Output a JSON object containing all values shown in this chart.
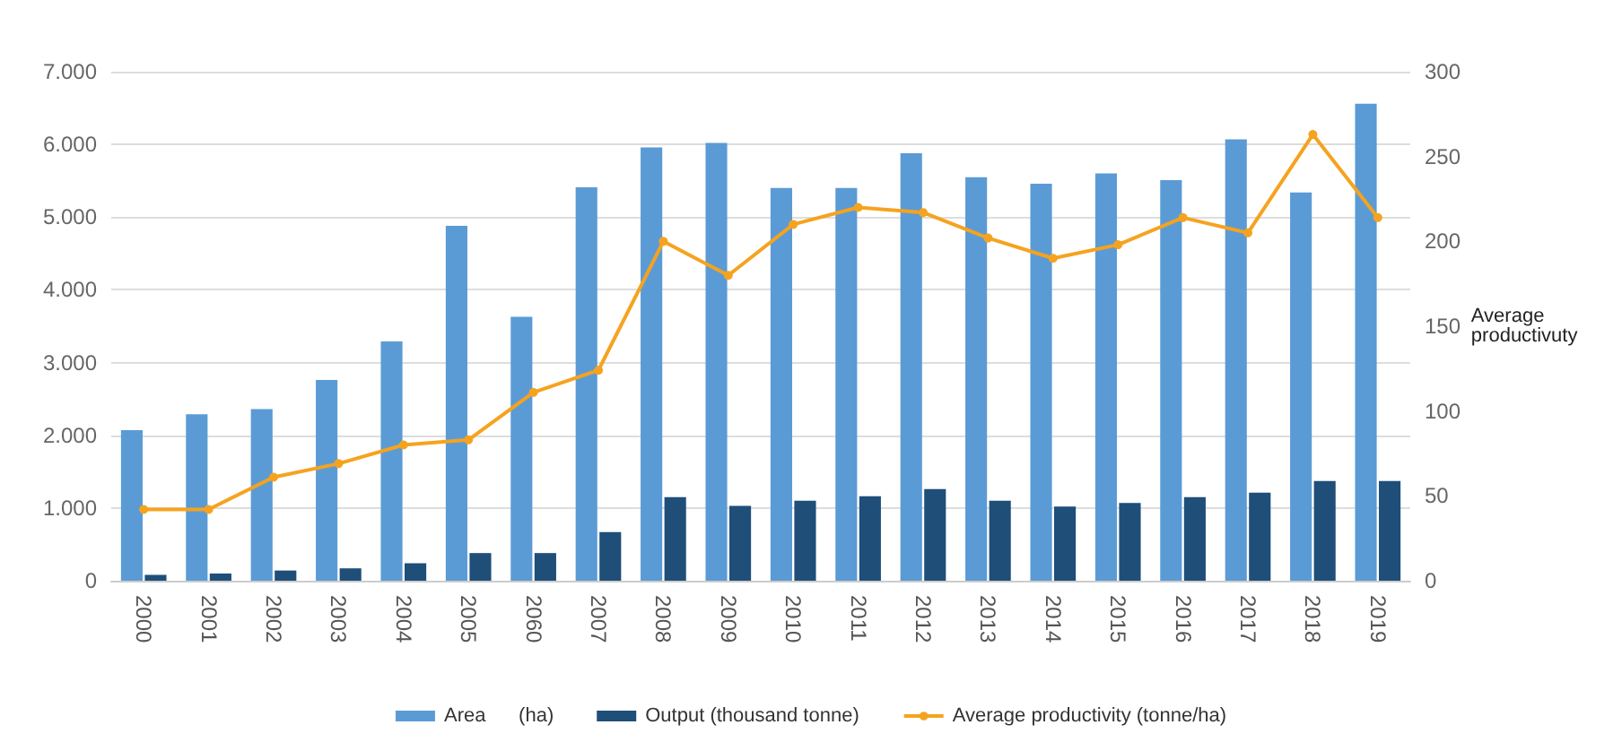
{
  "chart_data": {
    "type": "bar",
    "y2label": "Average\nproductivuty",
    "categories": [
      "2000",
      "2001",
      "2002",
      "2003",
      "2004",
      "2005",
      "2060",
      "2007",
      "2008",
      "2009",
      "2010",
      "2011",
      "2012",
      "2013",
      "2014",
      "2015",
      "2016",
      "2017",
      "2018",
      "2019"
    ],
    "series": [
      {
        "name": "Area      (ha)",
        "color": "#5b9bd5",
        "values": [
          2070,
          2290,
          2360,
          2760,
          3290,
          4880,
          3630,
          5410,
          5960,
          6020,
          5400,
          5400,
          5880,
          5550,
          5460,
          5600,
          5510,
          6070,
          5340,
          6560
        ]
      },
      {
        "name": "Output (thousand tonne)",
        "color": "#1f4e79",
        "values": [
          80,
          100,
          140,
          170,
          240,
          380,
          380,
          670,
          1150,
          1030,
          1100,
          1160,
          1260,
          1100,
          1020,
          1070,
          1150,
          1210,
          1370,
          1370
        ]
      },
      {
        "name": "Average productivity (tonne/ha)",
        "type": "line",
        "axis": "y2",
        "color": "#f5a31f",
        "values": [
          42,
          42,
          61,
          69,
          80,
          83,
          111,
          124,
          200,
          180,
          210,
          220,
          217,
          202,
          190,
          198,
          214,
          205,
          263,
          214
        ]
      }
    ],
    "ylim": [
      0,
      7000
    ],
    "yticks": [
      0,
      {
        "value": 1000,
        "label": "1.000"
      },
      {
        "value": 2000,
        "label": "2.000"
      },
      {
        "value": 3000,
        "label": "3.000"
      },
      {
        "value": 4000,
        "label": "4.000"
      },
      {
        "value": 5000,
        "label": "5.000"
      },
      {
        "value": 6000,
        "label": "6.000"
      },
      {
        "value": 7000,
        "label": "7.000"
      }
    ],
    "y2lim": [
      0,
      300
    ],
    "y2ticks": [
      0,
      50,
      100,
      150,
      200,
      250,
      300
    ],
    "grid": "y",
    "legend": "bottom",
    "marker": "circle",
    "line_style": "solid"
  }
}
